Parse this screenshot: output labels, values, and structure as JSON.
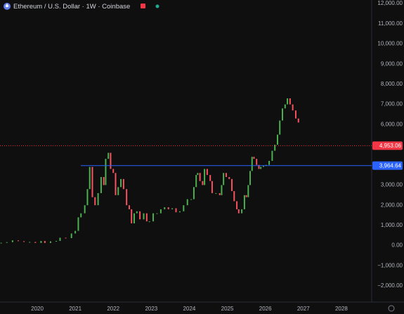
{
  "chart_data": {
    "type": "candlestick",
    "title": "Ethereum / U.S. Dollar · 1W · Coinbase",
    "up_color": "#4caf50",
    "down_color": "#f7525f",
    "xlim": [
      2019.02,
      2028.76
    ],
    "xticks": [
      2020,
      2021,
      2022,
      2023,
      2024,
      2025,
      2026,
      2027,
      2028
    ],
    "ylim": [
      -2800,
      12175
    ],
    "yticks": [
      {
        "value": 12000,
        "label": "12,000.00"
      },
      {
        "value": 11000,
        "label": "11,000.00"
      },
      {
        "value": 10000,
        "label": "10,000.00"
      },
      {
        "value": 9000,
        "label": "9,000.00"
      },
      {
        "value": 8000,
        "label": "8,000.00"
      },
      {
        "value": 7000,
        "label": "7,000.00"
      },
      {
        "value": 6000,
        "label": "6,000.00"
      },
      {
        "value": 5000,
        "label": "5,000.00"
      },
      {
        "value": 4000,
        "label": "4,000.00"
      },
      {
        "value": 3000,
        "label": "3,000.00"
      },
      {
        "value": 2000,
        "label": "2,000.00"
      },
      {
        "value": 1000,
        "label": "1,000.00"
      },
      {
        "value": 0,
        "label": "0.00"
      },
      {
        "value": -1000,
        "label": "−1,000.00"
      },
      {
        "value": -2000,
        "label": "−2,000.00"
      }
    ],
    "price_lines": [
      {
        "value": 4953.06,
        "label": "4,953.06",
        "color": "#f23645",
        "style": "dotted"
      },
      {
        "value": 3964.64,
        "label": "3,964.64",
        "color": "#2962ff",
        "style": "solid"
      }
    ],
    "x": [
      2019.05,
      2019.2,
      2019.35,
      2019.5,
      2019.65,
      2019.8,
      2019.95,
      2020.1,
      2020.2,
      2020.35,
      2020.5,
      2020.6,
      2020.75,
      2020.9,
      2021.0,
      2021.08,
      2021.15,
      2021.25,
      2021.32,
      2021.38,
      2021.45,
      2021.52,
      2021.6,
      2021.68,
      2021.75,
      2021.8,
      2021.87,
      2021.93,
      2022.0,
      2022.06,
      2022.13,
      2022.2,
      2022.27,
      2022.35,
      2022.42,
      2022.48,
      2022.55,
      2022.62,
      2022.7,
      2022.8,
      2022.88,
      2022.95,
      2023.05,
      2023.15,
      2023.25,
      2023.35,
      2023.45,
      2023.55,
      2023.65,
      2023.75,
      2023.85,
      2023.95,
      2024.05,
      2024.12,
      2024.18,
      2024.22,
      2024.28,
      2024.35,
      2024.4,
      2024.47,
      2024.55,
      2024.6,
      2024.7,
      2024.8,
      2024.85,
      2024.9,
      2024.97,
      2025.05,
      2025.12,
      2025.18,
      2025.25,
      2025.3,
      2025.38,
      2025.45,
      2025.5,
      2025.55,
      2025.6,
      2025.65,
      2025.7,
      2025.77,
      2025.83,
      2025.88,
      2025.95,
      2026.02,
      2026.1,
      2026.18,
      2026.25,
      2026.32,
      2026.38,
      2026.45,
      2026.52,
      2026.58,
      2026.65,
      2026.72,
      2026.8,
      2026.87
    ],
    "open": [
      130,
      140,
      170,
      260,
      220,
      180,
      180,
      130,
      230,
      130,
      210,
      230,
      390,
      370,
      600,
      730,
      1400,
      1600,
      2000,
      2800,
      3900,
      2400,
      2000,
      2600,
      3400,
      3000,
      4300,
      4600,
      3800,
      3600,
      2500,
      2900,
      3300,
      2800,
      2000,
      1800,
      1100,
      1600,
      1700,
      1300,
      1600,
      1200,
      1200,
      1600,
      1600,
      1800,
      1900,
      1800,
      1850,
      1650,
      1700,
      2000,
      2300,
      2300,
      2900,
      3500,
      3600,
      3200,
      3000,
      3800,
      3500,
      3200,
      2600,
      2600,
      2500,
      3000,
      3600,
      3400,
      3300,
      2700,
      2200,
      1800,
      1600,
      1800,
      2500,
      2400,
      3000,
      3700,
      4400,
      4300,
      4000,
      3800,
      3900,
      3950,
      4000,
      4200,
      4700,
      5000,
      5500,
      6200,
      6800,
      7000,
      7300,
      7000,
      6700,
      6300
    ],
    "close": [
      140,
      170,
      260,
      220,
      180,
      180,
      130,
      230,
      130,
      210,
      230,
      390,
      370,
      600,
      730,
      1400,
      1600,
      2000,
      2800,
      3900,
      2400,
      2000,
      2600,
      3400,
      3000,
      4300,
      4600,
      3800,
      3600,
      2500,
      2900,
      3300,
      2800,
      2000,
      1800,
      1100,
      1600,
      1700,
      1300,
      1600,
      1200,
      1200,
      1600,
      1600,
      1800,
      1900,
      1800,
      1850,
      1650,
      1700,
      2000,
      2300,
      2300,
      2900,
      3500,
      3600,
      3200,
      3000,
      3800,
      3500,
      3200,
      2600,
      2600,
      2500,
      3000,
      3600,
      3400,
      3300,
      2700,
      2200,
      1800,
      1600,
      1800,
      2500,
      2400,
      3000,
      3700,
      4400,
      4300,
      4000,
      3800,
      3900,
      3950,
      4000,
      4200,
      4700,
      5000,
      5500,
      6200,
      6800,
      7000,
      7300,
      7000,
      6700,
      6300,
      6100
    ]
  }
}
